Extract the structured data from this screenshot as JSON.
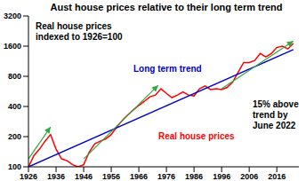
{
  "chart_data": {
    "type": "line",
    "title": "Aust house prices relative to their long term trend",
    "log": "y",
    "xlim": [
      1926,
      2024
    ],
    "xticks": [
      1926,
      1936,
      1946,
      1956,
      1966,
      1976,
      1986,
      1996,
      2006,
      2016
    ],
    "ylim": [
      100,
      3200
    ],
    "yticks": [
      100,
      200,
      400,
      800,
      1600,
      3200
    ],
    "grid": false,
    "annotations": [
      "Real house prices indexed to 1926=100",
      "15% above trend by June 2022"
    ],
    "series": [
      {
        "name": "Real house prices",
        "color": "#ff0000",
        "x": [
          1926,
          1928,
          1930,
          1932,
          1934,
          1936,
          1938,
          1940,
          1942,
          1944,
          1946,
          1948,
          1950,
          1952,
          1954,
          1956,
          1958,
          1960,
          1962,
          1964,
          1966,
          1968,
          1970,
          1972,
          1974,
          1976,
          1978,
          1980,
          1982,
          1984,
          1986,
          1988,
          1990,
          1992,
          1994,
          1996,
          1998,
          2000,
          2002,
          2004,
          2006,
          2008,
          2010,
          2012,
          2014,
          2016,
          2018,
          2020,
          2022
        ],
        "values": [
          100,
          130,
          150,
          180,
          210,
          150,
          120,
          115,
          105,
          100,
          105,
          140,
          170,
          180,
          190,
          210,
          250,
          290,
          330,
          370,
          410,
          450,
          500,
          520,
          600,
          540,
          490,
          520,
          560,
          520,
          510,
          600,
          640,
          590,
          600,
          590,
          620,
          700,
          880,
          1100,
          1100,
          1150,
          1350,
          1250,
          1350,
          1550,
          1600,
          1500,
          1700
        ]
      },
      {
        "name": "Long term trend",
        "color": "#0000cc",
        "x": [
          1926,
          2022
        ],
        "values": [
          100,
          1480
        ]
      },
      {
        "color": "#33a844",
        "marker": "arrow",
        "x": [
          1926,
          1934
        ],
        "values": [
          120,
          250
        ]
      },
      {
        "color": "#33a844",
        "marker": "arrow",
        "x": [
          1946,
          1973
        ],
        "values": [
          120,
          650
        ]
      },
      {
        "color": "#33a844",
        "marker": "arrow",
        "x": [
          1996,
          2022
        ],
        "values": [
          600,
          1800
        ]
      }
    ]
  }
}
